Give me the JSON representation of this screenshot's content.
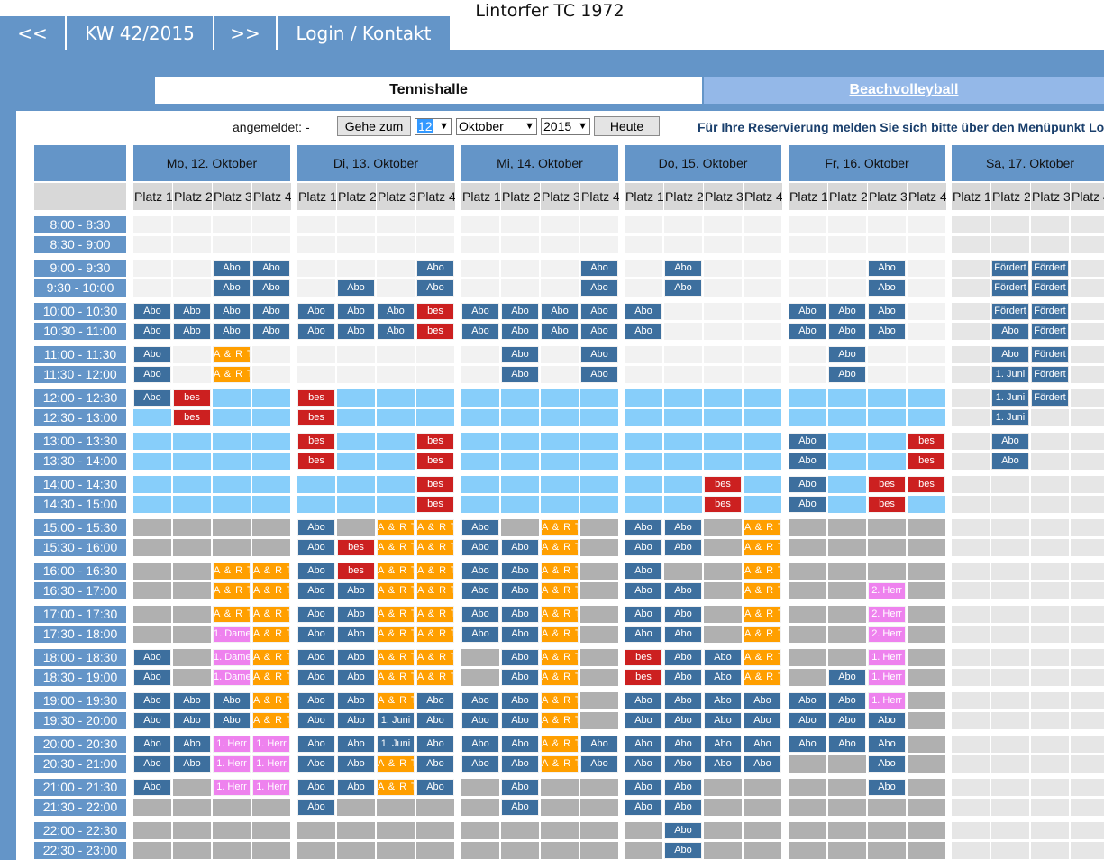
{
  "app": {
    "title": "Lintorfer TC 1972"
  },
  "nav": {
    "prev": "<<",
    "week": "KW 42/2015",
    "next": ">>",
    "login": "Login / Kontakt"
  },
  "tabs": {
    "tennis": "Tennishalle",
    "beach": "Beachvolleyball"
  },
  "toolbar": {
    "label": "angemeldet: -",
    "goto": "Gehe zum",
    "day": "12",
    "month": "Oktober",
    "year": "2015",
    "today": "Heute",
    "notice": "Für Ihre Reservierung melden Sie sich bitte über den Menüpunkt Login/Kontakt an."
  },
  "colors": {
    "accent": "#6495c8",
    "abo": "#3d6f9e",
    "bes": "#cc2020",
    "art": "#ff9f00",
    "pink": "#ee82ee",
    "light": "#87cefa",
    "gray": "#b0b0b0",
    "empty": "#f2f2f2"
  },
  "courts": [
    "Platz 1",
    "Platz 2",
    "Platz 3",
    "Platz 4"
  ],
  "days": [
    "Mo, 12. Oktober",
    "Di, 13. Oktober",
    "Mi, 14. Oktober",
    "Do, 15. Oktober",
    "Fr, 16. Oktober",
    "Sa, 17. Oktober"
  ],
  "times": [
    "8:00 - 8:30",
    "8:30 - 9:00",
    "9:00 - 9:30",
    "9:30 - 10:00",
    "10:00 - 10:30",
    "10:30 - 11:00",
    "11:00 - 11:30",
    "11:30 - 12:00",
    "12:00 - 12:30",
    "12:30 - 13:00",
    "13:00 - 13:30",
    "13:30 - 14:00",
    "14:00 - 14:30",
    "14:30 - 15:00",
    "15:00 - 15:30",
    "15:30 - 16:00",
    "16:00 - 16:30",
    "16:30 - 17:00",
    "17:00 - 17:30",
    "17:30 - 18:00",
    "18:00 - 18:30",
    "18:30 - 19:00",
    "19:00 - 19:30",
    "19:30 - 20:00",
    "20:00 - 20:30",
    "20:30 - 21:00",
    "21:00 - 21:30",
    "21:30 - 22:00",
    "22:00 - 22:30",
    "22:30 - 23:00"
  ],
  "labels": {
    "A": "Abo",
    "B": "bes",
    "R": "A & R T",
    "D": "1. Dame",
    "H": "1. Herr",
    "2": "2. Herr",
    "J": "1. Juni",
    "F": "Fördert"
  },
  "schedule": [
    [
      "....",
      "....",
      "....",
      "....",
      "....",
      "...."
    ],
    [
      "....",
      "....",
      "....",
      "....",
      "....",
      "...."
    ],
    [
      "..AA",
      "...A",
      "...A",
      ".A..",
      "..A.",
      ".FF."
    ],
    [
      "..AA",
      ".A.A",
      "...A",
      ".A..",
      "..A.",
      ".FF."
    ],
    [
      "AAAA",
      "AAAB",
      "AAAA",
      "A...",
      "AAA.",
      ".FF."
    ],
    [
      "AAAA",
      "AAAB",
      "AAAA",
      "A...",
      "AAA.",
      ".AF."
    ],
    [
      "A.R.",
      "....",
      ".A.A",
      "....",
      ".A..",
      ".AF."
    ],
    [
      "A.R.",
      "....",
      ".A.A",
      "....",
      ".A..",
      ".JF."
    ],
    [
      "AB__",
      "B___",
      "____",
      "____",
      "____",
      ".JF."
    ],
    [
      "_B__",
      "B___",
      "____",
      "____",
      "____",
      ".J.."
    ],
    [
      "____",
      "B__B",
      "____",
      "____",
      "A__B",
      ".A.."
    ],
    [
      "____",
      "B__B",
      "____",
      "____",
      "A__B",
      ".A.."
    ],
    [
      "____",
      "___B",
      "____",
      "__B_",
      "A_BB",
      "...."
    ],
    [
      "____",
      "___B",
      "____",
      "__B_",
      "A_B_",
      "...."
    ],
    [
      "gggg",
      "AgRR",
      "AgRg",
      "AAgR",
      "gggg",
      "...."
    ],
    [
      "gggg",
      "ABRR",
      "AARg",
      "AAgR",
      "gggg",
      "...."
    ],
    [
      "ggRR",
      "ABRR",
      "AARg",
      "AggR",
      "gggg",
      "...."
    ],
    [
      "ggRR",
      "AARR",
      "AARg",
      "AAgR",
      "gg2g",
      "...."
    ],
    [
      "ggRR",
      "AARR",
      "AARg",
      "AAgR",
      "gg2g",
      "...."
    ],
    [
      "ggDR",
      "AARR",
      "AARg",
      "AAgR",
      "gg2g",
      "...."
    ],
    [
      "AgDR",
      "AARR",
      "gARg",
      "BAAR",
      "ggHg",
      "...."
    ],
    [
      "AgDR",
      "AARR",
      "gARg",
      "BAAR",
      "gAHg",
      "...."
    ],
    [
      "AAAR",
      "AARA",
      "AARg",
      "AAAA",
      "AAHg",
      "...."
    ],
    [
      "AAAR",
      "AAJA",
      "AARg",
      "AAAA",
      "AAAg",
      "...."
    ],
    [
      "AAHH",
      "AAJA",
      "AARA",
      "AAAA",
      "AAAg",
      "...."
    ],
    [
      "AAHH",
      "AARA",
      "AARA",
      "AAAA",
      "ggAg",
      "...."
    ],
    [
      "AgHH",
      "AARA",
      "gAgg",
      "AAgg",
      "ggAg",
      "...."
    ],
    [
      "gggg",
      "Aggg",
      "gAgg",
      "AAgg",
      "gggg",
      "...."
    ],
    [
      "gggg",
      "gggg",
      "gggg",
      "gAgg",
      "gggg",
      "...."
    ],
    [
      "gggg",
      "gggg",
      "gggg",
      "gAgg",
      "gggg",
      "...."
    ]
  ]
}
